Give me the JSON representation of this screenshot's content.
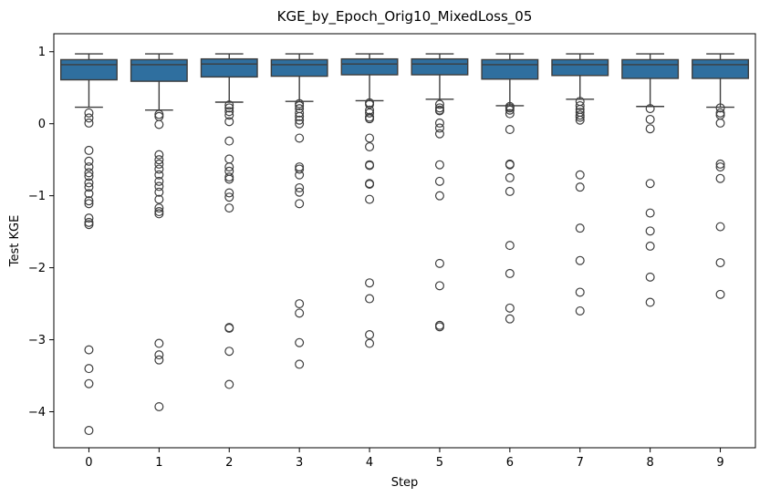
{
  "chart_data": {
    "type": "box",
    "title": "KGE_by_Epoch_Orig10_MixedLoss_05",
    "xlabel": "Step",
    "ylabel": "Test KGE",
    "ylim": [
      -4.5,
      1.25
    ],
    "yticks": [
      1,
      0,
      -1,
      -2,
      -3,
      -4
    ],
    "ytick_labels": [
      "1",
      "0",
      "−1",
      "−2",
      "−3",
      "−4"
    ],
    "grid": false,
    "box_color": "#2f6f9f",
    "categories": [
      "0",
      "1",
      "2",
      "3",
      "4",
      "5",
      "6",
      "7",
      "8",
      "9"
    ],
    "boxes": [
      {
        "step": "0",
        "whisker_low": 0.23,
        "q1": 0.61,
        "median": 0.82,
        "q3": 0.89,
        "whisker_high": 0.97,
        "outliers": [
          0.15,
          0.08,
          0.01,
          -0.37,
          -0.52,
          -0.6,
          -0.68,
          -0.73,
          -0.82,
          -0.88,
          -0.97,
          -1.07,
          -1.11,
          -1.31,
          -1.37,
          -1.4,
          -3.14,
          -3.4,
          -3.61,
          -4.26
        ]
      },
      {
        "step": "1",
        "whisker_low": 0.19,
        "q1": 0.59,
        "median": 0.82,
        "q3": 0.89,
        "whisker_high": 0.97,
        "outliers": [
          0.13,
          0.1,
          -0.01,
          -0.43,
          -0.5,
          -0.56,
          -0.63,
          -0.71,
          -0.8,
          -0.87,
          -0.95,
          -1.05,
          -1.17,
          -1.22,
          -1.25,
          -3.05,
          -3.21,
          -3.28,
          -3.93
        ]
      },
      {
        "step": "2",
        "whisker_low": 0.3,
        "q1": 0.65,
        "median": 0.83,
        "q3": 0.9,
        "whisker_high": 0.97,
        "outliers": [
          0.26,
          0.22,
          0.17,
          0.12,
          0.03,
          -0.24,
          -0.49,
          -0.6,
          -0.66,
          -0.74,
          -0.77,
          -0.96,
          -1.02,
          -1.17,
          -2.83,
          -2.84,
          -3.16,
          -3.62
        ]
      },
      {
        "step": "3",
        "whisker_low": 0.31,
        "q1": 0.66,
        "median": 0.82,
        "q3": 0.89,
        "whisker_high": 0.97,
        "outliers": [
          0.28,
          0.25,
          0.21,
          0.15,
          0.1,
          0.05,
          0.0,
          -0.2,
          -0.6,
          -0.63,
          -0.71,
          -0.89,
          -0.95,
          -1.11,
          -2.5,
          -2.63,
          -3.04,
          -3.34
        ]
      },
      {
        "step": "4",
        "whisker_low": 0.32,
        "q1": 0.68,
        "median": 0.83,
        "q3": 0.9,
        "whisker_high": 0.97,
        "outliers": [
          0.29,
          0.27,
          0.19,
          0.15,
          0.09,
          0.07,
          -0.2,
          -0.32,
          -0.57,
          -0.58,
          -0.83,
          -0.84,
          -1.05,
          -2.21,
          -2.43,
          -2.93,
          -3.05
        ]
      },
      {
        "step": "5",
        "whisker_low": 0.34,
        "q1": 0.68,
        "median": 0.83,
        "q3": 0.9,
        "whisker_high": 0.97,
        "outliers": [
          0.27,
          0.22,
          0.19,
          0.18,
          0.01,
          -0.06,
          -0.14,
          -0.57,
          -0.8,
          -1.0,
          -1.94,
          -2.25,
          -2.8,
          -2.82
        ]
      },
      {
        "step": "6",
        "whisker_low": 0.25,
        "q1": 0.62,
        "median": 0.82,
        "q3": 0.89,
        "whisker_high": 0.97,
        "outliers": [
          0.24,
          0.22,
          0.19,
          0.14,
          -0.08,
          -0.56,
          -0.57,
          -0.75,
          -0.94,
          -1.69,
          -2.08,
          -2.56,
          -2.71
        ]
      },
      {
        "step": "7",
        "whisker_low": 0.34,
        "q1": 0.67,
        "median": 0.82,
        "q3": 0.89,
        "whisker_high": 0.97,
        "outliers": [
          0.31,
          0.25,
          0.2,
          0.16,
          0.12,
          0.09,
          0.05,
          -0.71,
          -0.88,
          -1.45,
          -1.9,
          -2.34,
          -2.6
        ]
      },
      {
        "step": "8",
        "whisker_low": 0.24,
        "q1": 0.63,
        "median": 0.82,
        "q3": 0.89,
        "whisker_high": 0.97,
        "outliers": [
          0.21,
          0.06,
          -0.07,
          -0.83,
          -1.24,
          -1.49,
          -1.7,
          -2.13,
          -2.48
        ]
      },
      {
        "step": "9",
        "whisker_low": 0.23,
        "q1": 0.63,
        "median": 0.82,
        "q3": 0.89,
        "whisker_high": 0.97,
        "outliers": [
          0.22,
          0.15,
          0.12,
          0.01,
          -0.56,
          -0.6,
          -0.76,
          -1.43,
          -1.93,
          -2.37
        ]
      }
    ]
  }
}
